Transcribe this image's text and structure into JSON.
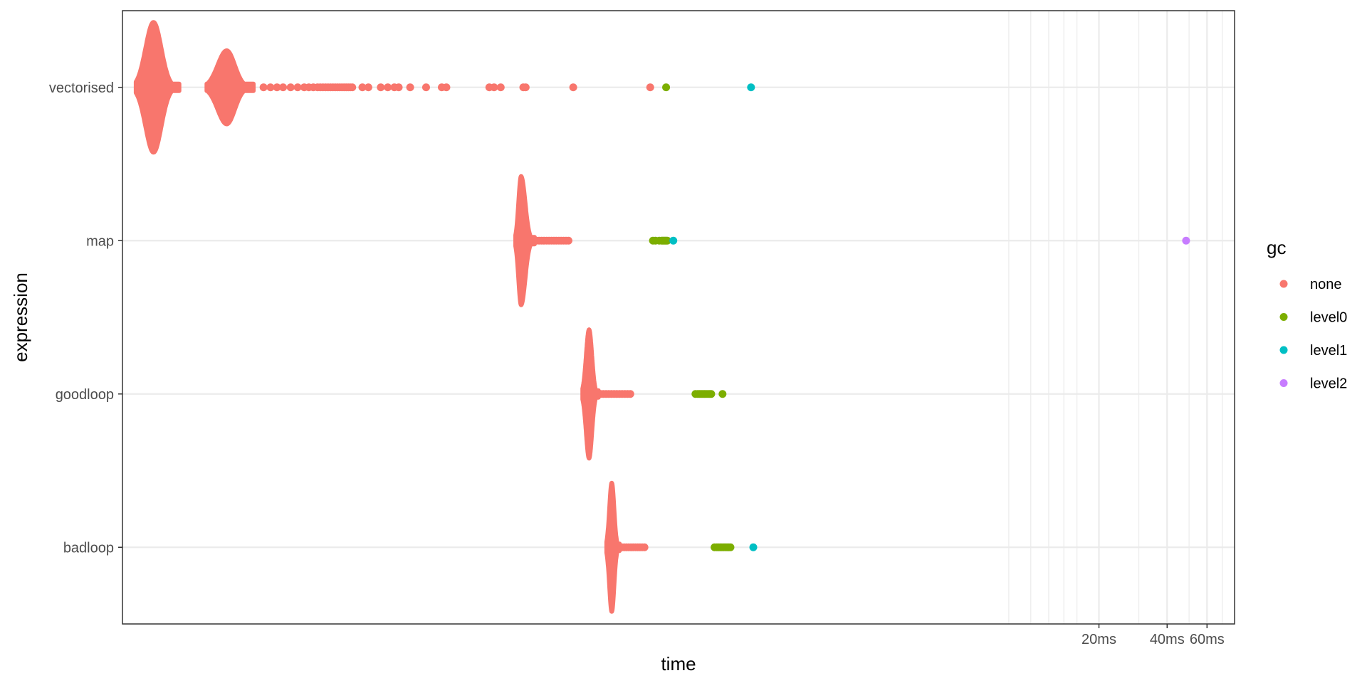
{
  "chart_data": {
    "type": "scatter",
    "subtype": "beeswarm",
    "title": "",
    "xlabel": "time",
    "ylabel": "expression",
    "x_scale": "log10",
    "x_units": "ms",
    "xlim": [
      0.000977,
      79.4
    ],
    "x_ticks": [
      {
        "value": 20,
        "label": "20ms"
      },
      {
        "value": 40,
        "label": "40ms"
      },
      {
        "value": 60,
        "label": "60ms"
      }
    ],
    "categories": [
      "vectorised",
      "map",
      "goodloop",
      "badloop"
    ],
    "grid": true,
    "legend": {
      "title": "gc",
      "position": "right",
      "entries": [
        {
          "name": "none",
          "color": "#F8766D"
        },
        {
          "name": "level0",
          "color": "#7CAE00"
        },
        {
          "name": "level1",
          "color": "#00BFC4"
        },
        {
          "name": "level2",
          "color": "#C77CFF"
        }
      ]
    },
    "distributions": [
      {
        "category": "vectorised",
        "gc": "none",
        "modes": [
          {
            "center": 0.00134,
            "left": 0.00112,
            "right": 0.00174,
            "height": 0.85
          },
          {
            "center": 0.00282,
            "left": 0.0023,
            "right": 0.0037,
            "height": 0.48
          }
        ]
      },
      {
        "category": "map",
        "gc": "none",
        "modes": [
          {
            "center": 0.0562,
            "left": 0.0531,
            "right": 0.0645,
            "height": 0.84
          }
        ]
      },
      {
        "category": "goodloop",
        "gc": "none",
        "modes": [
          {
            "center": 0.1122,
            "left": 0.105,
            "right": 0.1235,
            "height": 0.84
          }
        ]
      },
      {
        "category": "badloop",
        "gc": "none",
        "modes": [
          {
            "center": 0.1413,
            "left": 0.134,
            "right": 0.153,
            "height": 0.84
          }
        ]
      }
    ],
    "series": [
      {
        "name": "none",
        "color": "#F8766D",
        "points": [
          {
            "y": "vectorised",
            "x": 0.0041
          },
          {
            "y": "vectorised",
            "x": 0.0044
          },
          {
            "y": "vectorised",
            "x": 0.0047
          },
          {
            "y": "vectorised",
            "x": 0.005
          },
          {
            "y": "vectorised",
            "x": 0.0054
          },
          {
            "y": "vectorised",
            "x": 0.0058
          },
          {
            "y": "vectorised",
            "x": 0.0062
          },
          {
            "y": "vectorised",
            "x": 0.0065
          },
          {
            "y": "vectorised",
            "x": 0.0068
          },
          {
            "y": "vectorised",
            "x": 0.0071
          },
          {
            "y": "vectorised",
            "x": 0.0073
          },
          {
            "y": "vectorised",
            "x": 0.0075
          },
          {
            "y": "vectorised",
            "x": 0.0077
          },
          {
            "y": "vectorised",
            "x": 0.0079
          },
          {
            "y": "vectorised",
            "x": 0.0081
          },
          {
            "y": "vectorised",
            "x": 0.0083
          },
          {
            "y": "vectorised",
            "x": 0.0085
          },
          {
            "y": "vectorised",
            "x": 0.0087
          },
          {
            "y": "vectorised",
            "x": 0.0089
          },
          {
            "y": "vectorised",
            "x": 0.0091
          },
          {
            "y": "vectorised",
            "x": 0.0093
          },
          {
            "y": "vectorised",
            "x": 0.0095
          },
          {
            "y": "vectorised",
            "x": 0.0097
          },
          {
            "y": "vectorised",
            "x": 0.0099
          },
          {
            "y": "vectorised",
            "x": 0.0101
          },
          {
            "y": "vectorised",
            "x": 0.0112
          },
          {
            "y": "vectorised",
            "x": 0.0119
          },
          {
            "y": "vectorised",
            "x": 0.0135
          },
          {
            "y": "vectorised",
            "x": 0.0145
          },
          {
            "y": "vectorised",
            "x": 0.0155
          },
          {
            "y": "vectorised",
            "x": 0.0162
          },
          {
            "y": "vectorised",
            "x": 0.0182
          },
          {
            "y": "vectorised",
            "x": 0.0214
          },
          {
            "y": "vectorised",
            "x": 0.0251
          },
          {
            "y": "vectorised",
            "x": 0.0263
          },
          {
            "y": "vectorised",
            "x": 0.0407
          },
          {
            "y": "vectorised",
            "x": 0.0427
          },
          {
            "y": "vectorised",
            "x": 0.0457
          },
          {
            "y": "vectorised",
            "x": 0.0575
          },
          {
            "y": "vectorised",
            "x": 0.0589
          },
          {
            "y": "vectorised",
            "x": 0.0955
          },
          {
            "y": "vectorised",
            "x": 0.2089
          },
          {
            "y": "map",
            "x": 0.0657
          },
          {
            "y": "map",
            "x": 0.0675
          },
          {
            "y": "map",
            "x": 0.0692
          },
          {
            "y": "map",
            "x": 0.071
          },
          {
            "y": "map",
            "x": 0.0729
          },
          {
            "y": "map",
            "x": 0.0747
          },
          {
            "y": "map",
            "x": 0.0766
          },
          {
            "y": "map",
            "x": 0.0785
          },
          {
            "y": "map",
            "x": 0.0804
          },
          {
            "y": "map",
            "x": 0.0825
          },
          {
            "y": "map",
            "x": 0.0845
          },
          {
            "y": "map",
            "x": 0.0866
          },
          {
            "y": "map",
            "x": 0.0888
          },
          {
            "y": "map",
            "x": 0.091
          },
          {
            "y": "goodloop",
            "x": 0.1262
          },
          {
            "y": "goodloop",
            "x": 0.1297
          },
          {
            "y": "goodloop",
            "x": 0.1333
          },
          {
            "y": "goodloop",
            "x": 0.137
          },
          {
            "y": "goodloop",
            "x": 0.1408
          },
          {
            "y": "goodloop",
            "x": 0.1447
          },
          {
            "y": "goodloop",
            "x": 0.1487
          },
          {
            "y": "goodloop",
            "x": 0.1528
          },
          {
            "y": "goodloop",
            "x": 0.157
          },
          {
            "y": "goodloop",
            "x": 0.1614
          },
          {
            "y": "goodloop",
            "x": 0.1659
          },
          {
            "y": "goodloop",
            "x": 0.1706
          },
          {
            "y": "badloop",
            "x": 0.1567
          },
          {
            "y": "badloop",
            "x": 0.1603
          },
          {
            "y": "badloop",
            "x": 0.164
          },
          {
            "y": "badloop",
            "x": 0.1678
          },
          {
            "y": "badloop",
            "x": 0.1717
          },
          {
            "y": "badloop",
            "x": 0.1757
          },
          {
            "y": "badloop",
            "x": 0.1797
          },
          {
            "y": "badloop",
            "x": 0.1839
          },
          {
            "y": "badloop",
            "x": 0.1881
          },
          {
            "y": "badloop",
            "x": 0.1925
          },
          {
            "y": "badloop",
            "x": 0.197
          }
        ]
      },
      {
        "name": "level0",
        "color": "#7CAE00",
        "points": [
          {
            "y": "vectorised",
            "x": 0.2455
          },
          {
            "y": "map",
            "x": 0.2148
          },
          {
            "y": "map",
            "x": 0.2203
          },
          {
            "y": "map",
            "x": 0.229
          },
          {
            "y": "map",
            "x": 0.2345
          },
          {
            "y": "map",
            "x": 0.2371
          },
          {
            "y": "map",
            "x": 0.2399
          },
          {
            "y": "map",
            "x": 0.2427
          },
          {
            "y": "map",
            "x": 0.2455
          },
          {
            "y": "map",
            "x": 0.2484
          },
          {
            "y": "goodloop",
            "x": 0.3309
          },
          {
            "y": "goodloop",
            "x": 0.3386
          },
          {
            "y": "goodloop",
            "x": 0.3445
          },
          {
            "y": "goodloop",
            "x": 0.3505
          },
          {
            "y": "goodloop",
            "x": 0.3564
          },
          {
            "y": "goodloop",
            "x": 0.3625
          },
          {
            "y": "goodloop",
            "x": 0.3689
          },
          {
            "y": "goodloop",
            "x": 0.3758
          },
          {
            "y": "goodloop",
            "x": 0.3825
          },
          {
            "y": "goodloop",
            "x": 0.3883
          },
          {
            "y": "goodloop",
            "x": 0.4357
          },
          {
            "y": "badloop",
            "x": 0.4018
          },
          {
            "y": "badloop",
            "x": 0.4111
          },
          {
            "y": "badloop",
            "x": 0.4183
          },
          {
            "y": "badloop",
            "x": 0.4257
          },
          {
            "y": "badloop",
            "x": 0.4331
          },
          {
            "y": "badloop",
            "x": 0.4407
          },
          {
            "y": "badloop",
            "x": 0.4484
          },
          {
            "y": "badloop",
            "x": 0.4562
          },
          {
            "y": "badloop",
            "x": 0.4642
          },
          {
            "y": "badloop",
            "x": 0.4723
          }
        ]
      },
      {
        "name": "level1",
        "color": "#00BFC4",
        "points": [
          {
            "y": "vectorised",
            "x": 0.5821
          },
          {
            "y": "map",
            "x": 0.2642
          },
          {
            "y": "badloop",
            "x": 0.5957
          }
        ]
      },
      {
        "name": "level2",
        "color": "#C77CFF",
        "points": [
          {
            "y": "map",
            "x": 48.5
          }
        ]
      }
    ]
  }
}
